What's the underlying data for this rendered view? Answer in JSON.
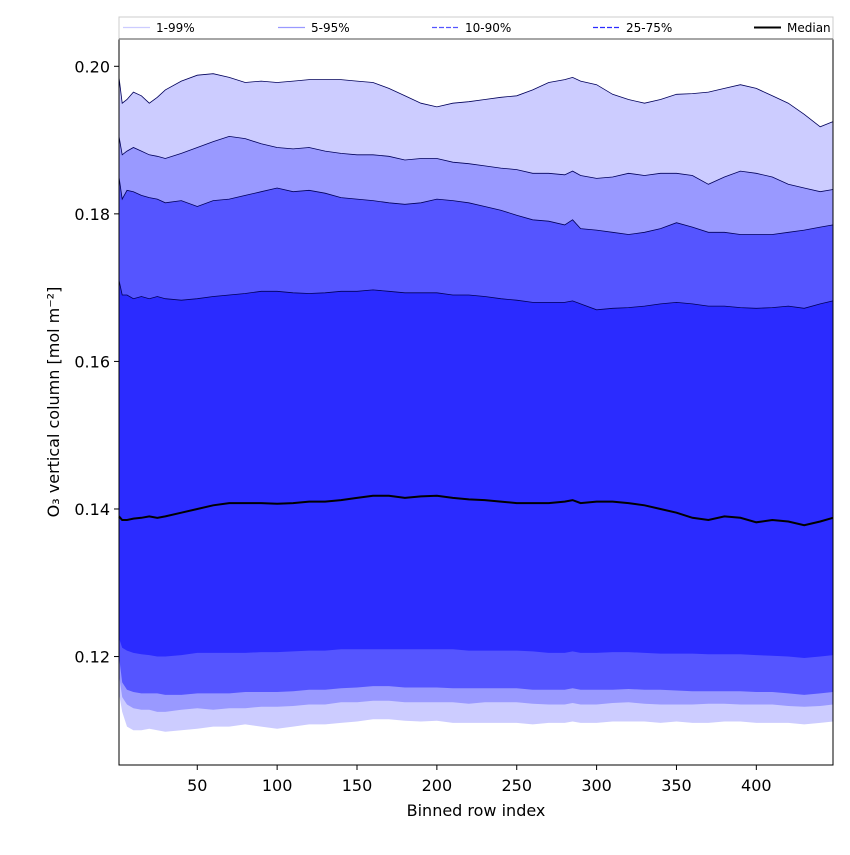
{
  "chart_data": {
    "type": "area",
    "title": "",
    "xlabel": "Binned row index",
    "ylabel": "O₃ vertical column [mol m⁻²]",
    "xlim": [
      1,
      448
    ],
    "ylim": [
      0.1053,
      0.2037
    ],
    "x_ticks": [
      50,
      100,
      150,
      200,
      250,
      300,
      350,
      400
    ],
    "y_ticks": [
      0.12,
      0.14,
      0.16,
      0.18,
      0.2
    ],
    "y_tick_labels": [
      "0.12",
      "0.14",
      "0.16",
      "0.18",
      "0.20"
    ],
    "grid": false,
    "legend_position": "top (above plot, single row)",
    "x": [
      1,
      3,
      6,
      10,
      15,
      20,
      25,
      30,
      40,
      50,
      60,
      70,
      80,
      90,
      100,
      110,
      120,
      130,
      140,
      150,
      160,
      170,
      180,
      190,
      200,
      210,
      220,
      230,
      240,
      250,
      260,
      270,
      280,
      285,
      290,
      300,
      310,
      320,
      330,
      340,
      350,
      360,
      370,
      380,
      390,
      400,
      410,
      420,
      430,
      440,
      448
    ],
    "bands": [
      {
        "name": "1-99%",
        "color": "#ccccff",
        "upper": [
          0.1985,
          0.195,
          0.1955,
          0.1965,
          0.196,
          0.195,
          0.1958,
          0.1968,
          0.198,
          0.1988,
          0.199,
          0.1985,
          0.1978,
          0.198,
          0.1978,
          0.198,
          0.1982,
          0.1982,
          0.1982,
          0.198,
          0.1978,
          0.197,
          0.196,
          0.195,
          0.1945,
          0.195,
          0.1952,
          0.1955,
          0.1958,
          0.196,
          0.1968,
          0.1978,
          0.1982,
          0.1985,
          0.198,
          0.1975,
          0.1962,
          0.1955,
          0.195,
          0.1955,
          0.1962,
          0.1963,
          0.1965,
          0.197,
          0.1975,
          0.197,
          0.196,
          0.195,
          0.1935,
          0.1918,
          0.1925
        ],
        "lower": [
          0.115,
          0.1125,
          0.1105,
          0.11,
          0.11,
          0.1102,
          0.11,
          0.1098,
          0.11,
          0.1102,
          0.1105,
          0.1105,
          0.1108,
          0.1105,
          0.1102,
          0.1105,
          0.1108,
          0.1108,
          0.111,
          0.1112,
          0.1115,
          0.1115,
          0.1113,
          0.1112,
          0.1113,
          0.111,
          0.111,
          0.111,
          0.111,
          0.111,
          0.1108,
          0.111,
          0.111,
          0.1112,
          0.111,
          0.111,
          0.1112,
          0.1112,
          0.1112,
          0.111,
          0.1112,
          0.111,
          0.111,
          0.1112,
          0.1112,
          0.111,
          0.111,
          0.111,
          0.1108,
          0.111,
          0.1112
        ]
      },
      {
        "name": "5-95%",
        "color": "#9999ff",
        "upper": [
          0.1905,
          0.188,
          0.1885,
          0.189,
          0.1885,
          0.188,
          0.1878,
          0.1875,
          0.1882,
          0.189,
          0.1898,
          0.1905,
          0.1902,
          0.1895,
          0.189,
          0.1888,
          0.189,
          0.1885,
          0.1882,
          0.188,
          0.188,
          0.1878,
          0.1873,
          0.1875,
          0.1875,
          0.187,
          0.1868,
          0.1865,
          0.1862,
          0.186,
          0.1855,
          0.1855,
          0.1853,
          0.1858,
          0.1852,
          0.1848,
          0.185,
          0.1855,
          0.1852,
          0.1855,
          0.1855,
          0.1852,
          0.184,
          0.185,
          0.1858,
          0.1855,
          0.185,
          0.184,
          0.1835,
          0.183,
          0.1833
        ],
        "lower": [
          0.1175,
          0.1145,
          0.1135,
          0.113,
          0.1128,
          0.1128,
          0.1125,
          0.1125,
          0.1128,
          0.113,
          0.1128,
          0.113,
          0.113,
          0.1132,
          0.1132,
          0.1133,
          0.1135,
          0.1135,
          0.1138,
          0.1138,
          0.114,
          0.114,
          0.1138,
          0.1138,
          0.1138,
          0.1138,
          0.1136,
          0.1138,
          0.1138,
          0.1138,
          0.1136,
          0.1135,
          0.1135,
          0.1137,
          0.1135,
          0.1135,
          0.1137,
          0.1138,
          0.1136,
          0.1135,
          0.1135,
          0.1135,
          0.1136,
          0.1136,
          0.1135,
          0.1135,
          0.1135,
          0.1133,
          0.1132,
          0.1133,
          0.1135
        ]
      },
      {
        "name": "10-90%",
        "color": "#5555ff",
        "upper": [
          0.185,
          0.182,
          0.1832,
          0.183,
          0.1825,
          0.1822,
          0.182,
          0.1815,
          0.1818,
          0.181,
          0.1818,
          0.182,
          0.1825,
          0.183,
          0.1835,
          0.183,
          0.1832,
          0.1828,
          0.1822,
          0.182,
          0.1818,
          0.1815,
          0.1813,
          0.1815,
          0.182,
          0.1818,
          0.1815,
          0.181,
          0.1805,
          0.1798,
          0.1792,
          0.179,
          0.1785,
          0.1792,
          0.178,
          0.1778,
          0.1775,
          0.1772,
          0.1775,
          0.178,
          0.1788,
          0.1782,
          0.1775,
          0.1775,
          0.1772,
          0.1772,
          0.1772,
          0.1775,
          0.1778,
          0.1782,
          0.1785
        ],
        "lower": [
          0.12,
          0.1165,
          0.1155,
          0.1152,
          0.115,
          0.115,
          0.115,
          0.1148,
          0.1148,
          0.115,
          0.115,
          0.115,
          0.1152,
          0.1152,
          0.1152,
          0.1153,
          0.1155,
          0.1155,
          0.1157,
          0.1158,
          0.116,
          0.116,
          0.1158,
          0.1158,
          0.1158,
          0.1157,
          0.1157,
          0.1157,
          0.1157,
          0.1157,
          0.1155,
          0.1155,
          0.1155,
          0.1157,
          0.1155,
          0.1155,
          0.1155,
          0.1156,
          0.1155,
          0.1155,
          0.1154,
          0.1153,
          0.1153,
          0.1153,
          0.1153,
          0.1152,
          0.1152,
          0.115,
          0.1148,
          0.115,
          0.1152
        ]
      },
      {
        "name": "25-75%",
        "color": "#2b2bff",
        "upper": [
          0.171,
          0.169,
          0.169,
          0.1685,
          0.1688,
          0.1685,
          0.1688,
          0.1685,
          0.1683,
          0.1685,
          0.1688,
          0.169,
          0.1692,
          0.1695,
          0.1695,
          0.1693,
          0.1692,
          0.1693,
          0.1695,
          0.1695,
          0.1697,
          0.1695,
          0.1693,
          0.1693,
          0.1693,
          0.169,
          0.169,
          0.1688,
          0.1685,
          0.1683,
          0.168,
          0.168,
          0.168,
          0.1682,
          0.1678,
          0.167,
          0.1672,
          0.1673,
          0.1675,
          0.1678,
          0.168,
          0.1678,
          0.1675,
          0.1675,
          0.1673,
          0.1672,
          0.1673,
          0.1675,
          0.1672,
          0.1678,
          0.1682
        ],
        "lower": [
          0.1225,
          0.1212,
          0.1208,
          0.1205,
          0.1203,
          0.1202,
          0.12,
          0.12,
          0.1202,
          0.1205,
          0.1205,
          0.1205,
          0.1205,
          0.1206,
          0.1206,
          0.1207,
          0.1208,
          0.1208,
          0.121,
          0.121,
          0.121,
          0.121,
          0.121,
          0.121,
          0.121,
          0.121,
          0.1208,
          0.1208,
          0.1208,
          0.1208,
          0.1207,
          0.1205,
          0.1205,
          0.1207,
          0.1205,
          0.1205,
          0.1206,
          0.1206,
          0.1205,
          0.1204,
          0.1204,
          0.1204,
          0.1203,
          0.1203,
          0.1203,
          0.1202,
          0.1201,
          0.12,
          0.1198,
          0.12,
          0.1202
        ]
      }
    ],
    "median": {
      "name": "Median",
      "color": "#000000",
      "values": [
        0.139,
        0.1385,
        0.1385,
        0.1387,
        0.1388,
        0.139,
        0.1388,
        0.139,
        0.1395,
        0.14,
        0.1405,
        0.1408,
        0.1408,
        0.1408,
        0.1407,
        0.1408,
        0.141,
        0.141,
        0.1412,
        0.1415,
        0.1418,
        0.1418,
        0.1415,
        0.1417,
        0.1418,
        0.1415,
        0.1413,
        0.1412,
        0.141,
        0.1408,
        0.1408,
        0.1408,
        0.141,
        0.1412,
        0.1408,
        0.141,
        0.141,
        0.1408,
        0.1405,
        0.14,
        0.1395,
        0.1388,
        0.1385,
        0.139,
        0.1388,
        0.1382,
        0.1385,
        0.1383,
        0.1378,
        0.1383,
        0.1388
      ]
    },
    "legend": [
      {
        "label": "1-99%",
        "color": "#ccccff",
        "style": "solid"
      },
      {
        "label": "5-95%",
        "color": "#9999ff",
        "style": "solid"
      },
      {
        "label": "10-90%",
        "color": "#5555ff",
        "style": "dashed"
      },
      {
        "label": "25-75%",
        "color": "#2b2bff",
        "style": "dashed"
      },
      {
        "label": "Median",
        "color": "#000000",
        "style": "solid"
      }
    ]
  }
}
